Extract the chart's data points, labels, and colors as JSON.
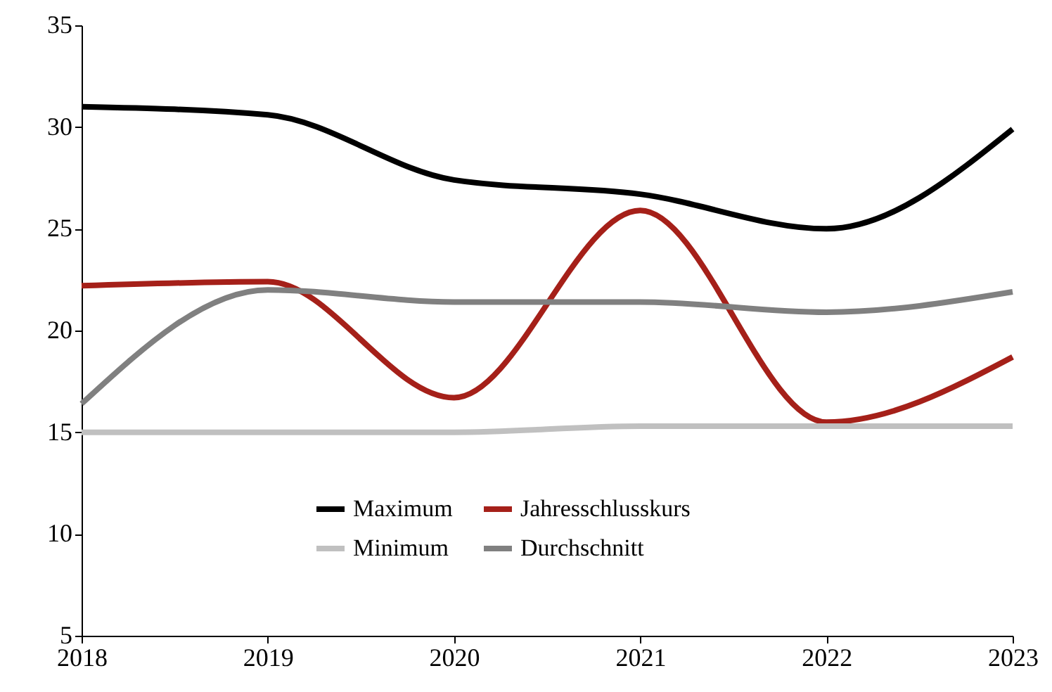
{
  "chart_data": {
    "type": "line",
    "x": [
      2018,
      2019,
      2020,
      2021,
      2022,
      2023
    ],
    "series": [
      {
        "name": "Maximum",
        "color": "#000000",
        "values": [
          31.0,
          30.6,
          27.4,
          26.7,
          25.0,
          29.9
        ]
      },
      {
        "name": "Jahresschlusskurs",
        "color": "#a52019",
        "values": [
          22.2,
          22.4,
          16.7,
          25.9,
          15.5,
          18.7
        ]
      },
      {
        "name": "Minimum",
        "color": "#c0c0c0",
        "values": [
          15.0,
          15.0,
          15.0,
          15.3,
          15.3,
          15.3
        ]
      },
      {
        "name": "Durchschnitt",
        "color": "#808080",
        "values": [
          16.4,
          22.0,
          21.4,
          21.4,
          20.9,
          21.9
        ]
      }
    ],
    "xlim": [
      2018,
      2023
    ],
    "xticks": [
      2018,
      2019,
      2020,
      2021,
      2022,
      2023
    ],
    "ylim": [
      5,
      35
    ],
    "yticks": [
      5,
      10,
      15,
      20,
      25,
      30,
      35
    ],
    "grid": false,
    "legend": "bottom",
    "marker": "none",
    "line_style": "solid"
  }
}
